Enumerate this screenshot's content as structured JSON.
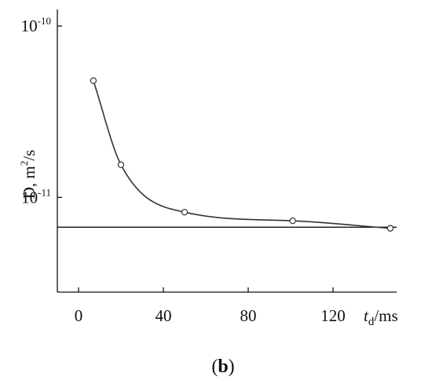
{
  "chart_data": {
    "type": "scatter",
    "title": "",
    "xlabel": {
      "main": "t",
      "sub": "d",
      "rest": "/ms"
    },
    "ylabel": {
      "main": "D, m",
      "sup": "2",
      "rest": "/s"
    },
    "panel_label": {
      "open": "(",
      "bold": "b",
      "close": ")"
    },
    "x_ticks": [
      "0",
      "40",
      "80",
      "120"
    ],
    "y_ticks": [
      {
        "base": "10",
        "exp": "-10",
        "value": 1e-10
      },
      {
        "base": "10",
        "exp": "-11",
        "value": 1e-11
      }
    ],
    "xlim": [
      -10,
      150
    ],
    "ylim": [
      2.8e-12,
      1.25e-10
    ],
    "y_scale": "log",
    "grid": false,
    "legend": "none",
    "series": [
      {
        "values": [
          {
            "x": 7,
            "y": 4.8e-11
          },
          {
            "x": 20,
            "y": 1.55e-11
          },
          {
            "x": 50,
            "y": 8.2e-12
          },
          {
            "x": 101,
            "y": 7.3e-12
          },
          {
            "x": 147,
            "y": 6.6e-12
          }
        ]
      }
    ],
    "reference_line": {
      "y": 6.7e-12
    },
    "colors": {
      "axis": "#111111",
      "curve": "#333333",
      "marker_fill": "#ffffff"
    }
  }
}
